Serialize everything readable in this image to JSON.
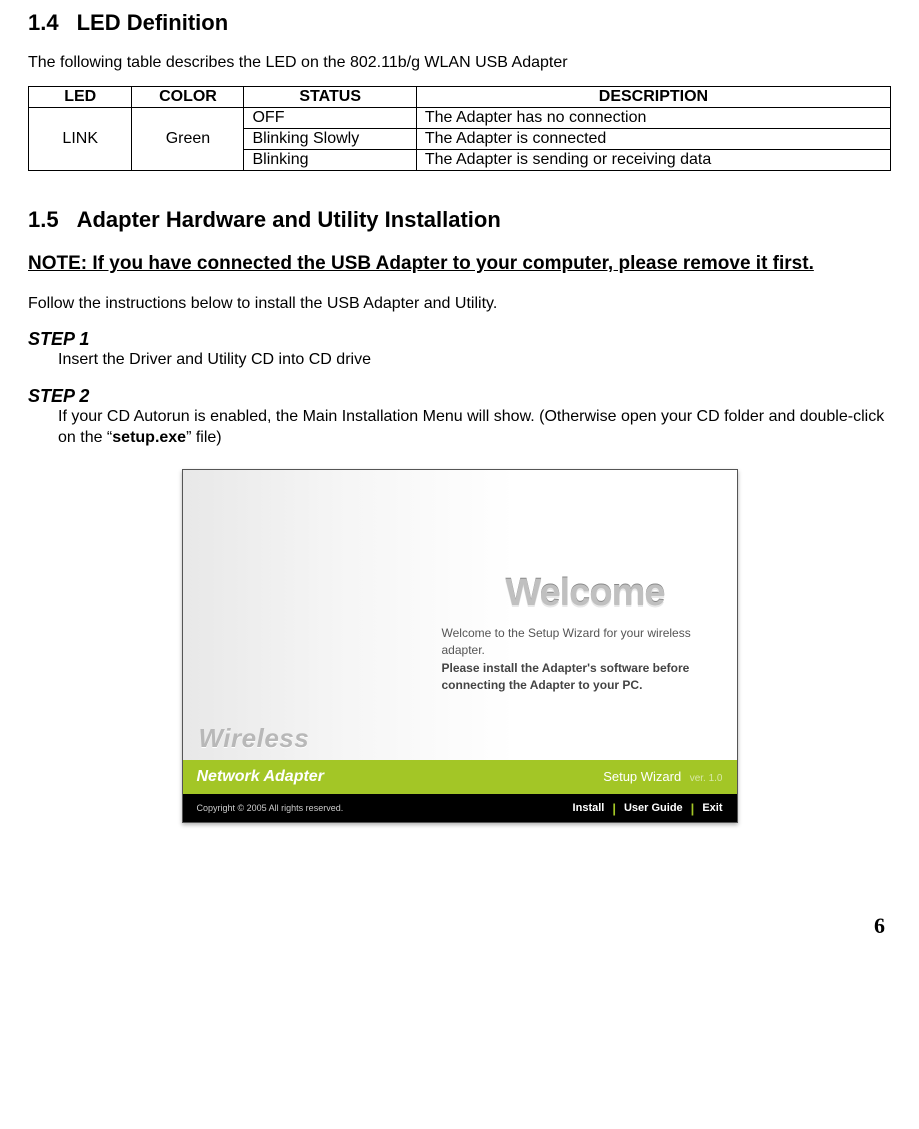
{
  "section14": {
    "number": "1.4",
    "title": "LED Definition",
    "intro": "The following table describes the LED on the 802.11b/g WLAN USB Adapter",
    "table": {
      "headers": {
        "led": "LED",
        "color": "COLOR",
        "status": "STATUS",
        "description": "DESCRIPTION"
      },
      "led": "LINK",
      "color": "Green",
      "rows": [
        {
          "status": "OFF",
          "desc": "The Adapter has no connection"
        },
        {
          "status": "Blinking Slowly",
          "desc": "The Adapter is connected"
        },
        {
          "status": "Blinking",
          "desc": "The Adapter is sending or receiving data"
        }
      ]
    }
  },
  "section15": {
    "number": "1.5",
    "title": "Adapter Hardware and Utility Installation",
    "note": "NOTE: If you have connected the USB Adapter to your computer, please remove it first.",
    "follow": "Follow the instructions below to install the USB Adapter and Utility.",
    "step1": {
      "label": "STEP 1",
      "text": "Insert the Driver and Utility CD into CD drive"
    },
    "step2": {
      "label": "STEP 2",
      "text_before": "If your CD Autorun is enabled, the Main Installation Menu will show. (Otherwise open your CD folder and double-click on the “",
      "setup": "setup.exe",
      "text_after": "” file)"
    }
  },
  "wizard": {
    "welcome_heading": "Welcome",
    "welcome_line1": "Welcome to the Setup Wizard for your wireless adapter.",
    "welcome_line2": "Please install the Adapter's software before connecting the Adapter to your PC.",
    "wireless": "Wireless",
    "network_adapter": "Network Adapter",
    "setup_wizard": "Setup Wizard",
    "ver": "ver. 1.0",
    "copyright": "Copyright © 2005 All rights reserved.",
    "install": "Install",
    "user_guide": "User Guide",
    "exit": "Exit",
    "colors": {
      "green_bar": "#a3c626",
      "black_bar": "#000000",
      "welcome_gray": "#c0c0c0"
    }
  },
  "page_number": "6"
}
